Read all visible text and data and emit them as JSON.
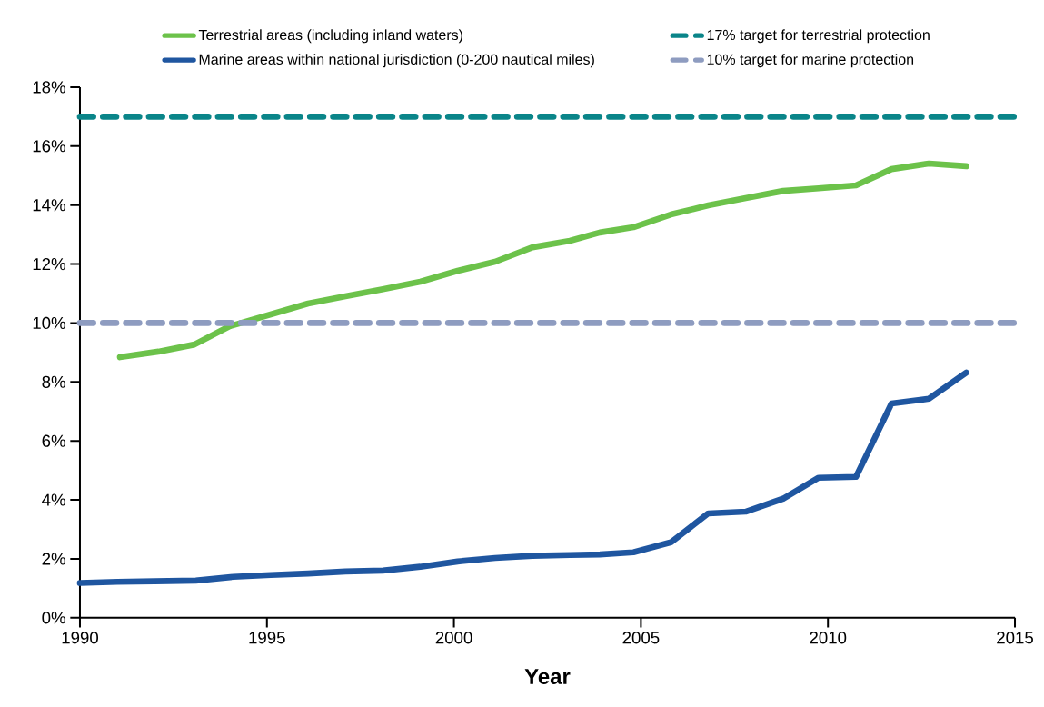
{
  "chart_data": {
    "type": "line",
    "xlabel": "Year",
    "xlim": [
      1990,
      2015
    ],
    "xticks": [
      1990,
      1995,
      2000,
      2005,
      2010,
      2015
    ],
    "ylim": [
      0,
      18
    ],
    "yticks": [
      {
        "value": 0,
        "label": "0%"
      },
      {
        "value": 2,
        "label": "2%"
      },
      {
        "value": 4,
        "label": "4%"
      },
      {
        "value": 6,
        "label": "6%"
      },
      {
        "value": 8,
        "label": "8%"
      },
      {
        "value": 10,
        "label": "10%"
      },
      {
        "value": 12,
        "label": "12%"
      },
      {
        "value": 14,
        "label": "14%"
      },
      {
        "value": 16,
        "label": "16%"
      },
      {
        "value": 18,
        "label": "18%"
      }
    ],
    "legend": "top",
    "grid": false,
    "marker": "none",
    "series": [
      {
        "name": "Terrestrial areas (including inland waters)",
        "color": "#6cc24a",
        "x": [
          1991.07,
          1992.1,
          1993.06,
          1994.0,
          1995.1,
          1996.1,
          1997.1,
          1998.1,
          1999.1,
          2000.1,
          2001.1,
          2002.1,
          2003.1,
          2003.9,
          2004.8,
          2005.8,
          2006.8,
          2007.8,
          2008.8,
          2009.75,
          2010.75,
          2011.7,
          2012.7,
          2013.7
        ],
        "values": [
          8.84,
          9.03,
          9.27,
          9.89,
          10.29,
          10.66,
          10.91,
          11.15,
          11.4,
          11.77,
          12.08,
          12.57,
          12.79,
          13.07,
          13.25,
          13.68,
          13.99,
          14.24,
          14.48,
          14.57,
          14.67,
          15.22,
          15.41,
          15.32
        ]
      },
      {
        "name": "Marine areas within national jurisdiction (0-200 nautical miles)",
        "color": "#1f56a0",
        "x": [
          1990,
          1991,
          1992,
          1993.1,
          1994.1,
          1995.1,
          1996.1,
          1997.1,
          1998.1,
          1999.1,
          2000.1,
          2001.1,
          2002.1,
          2003.1,
          2003.9,
          2004.8,
          2005.8,
          2006.8,
          2007.8,
          2008.8,
          2009.75,
          2010.75,
          2011.7,
          2012.7,
          2013.7
        ],
        "values": [
          1.18,
          1.22,
          1.24,
          1.26,
          1.39,
          1.45,
          1.5,
          1.57,
          1.6,
          1.73,
          1.91,
          2.03,
          2.1,
          2.13,
          2.15,
          2.22,
          2.56,
          3.54,
          3.6,
          4.04,
          4.75,
          4.78,
          7.27,
          7.43,
          8.32
        ]
      }
    ],
    "ref_lines": [
      {
        "axis": "y",
        "value": 17,
        "label": "17% target for terrestrial protection",
        "color": "#0a8589",
        "line_style": "dashed"
      },
      {
        "axis": "y",
        "value": 10,
        "label": "10% target for marine protection",
        "color": "#8e9cc0",
        "line_style": "dashed"
      }
    ]
  }
}
